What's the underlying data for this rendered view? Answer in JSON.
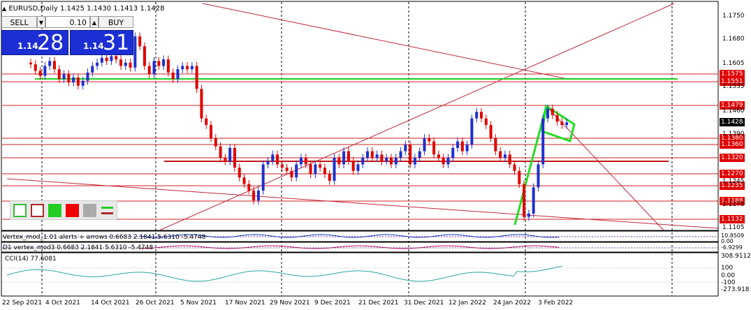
{
  "symbol": {
    "title": "EURUSD,Daily  1.1425 1.1430 1.1413 1.1428",
    "arrow_icon": "triangle-up-icon"
  },
  "trade_panel": {
    "sell_label": "SELL",
    "buy_label": "BUY",
    "lot_value": "0.10",
    "sell_price_small": "1.14",
    "sell_price_big": "28",
    "buy_price_small": "1.14",
    "buy_price_big": "31",
    "accent_color": "#1c2fd4"
  },
  "price_levels": [
    {
      "label": "1.1575",
      "color": "#e00000"
    },
    {
      "label": "1.1551",
      "color": "#e00000"
    },
    {
      "label": "1.1479",
      "color": "#e00000"
    },
    {
      "label": "1.1428",
      "color": "#000000"
    },
    {
      "label": "1.1380",
      "color": "#e00000"
    },
    {
      "label": "1.1360",
      "color": "#e00000"
    },
    {
      "label": "1.1320",
      "color": "#e00000"
    },
    {
      "label": "1.1270",
      "color": "#e00000"
    },
    {
      "label": "1.1235",
      "color": "#e00000"
    },
    {
      "label": "1.1188",
      "color": "#e00000"
    },
    {
      "label": "1.1132",
      "color": "#e00000"
    }
  ],
  "price_axis": [
    "1.1750",
    "1.1680",
    "1.1605",
    "1.1535",
    "1.1460",
    "1.1390",
    "1.1245",
    "1.1175",
    "1.1105"
  ],
  "indicators": {
    "vertex1": "Vertex_mod_1.01 alerts + arrows 0.6683 2.1841 5.6310 -5.4748",
    "vertex2": "D1 vertex_mod3 0.6683 2.1841 5.6310 -5.4748",
    "cci": "CCI(14) 77.6081",
    "cci_axis": [
      "308.9112",
      "100",
      "0.00",
      "-100",
      "-273.918"
    ],
    "vertex_axis": [
      "10.8509",
      "0.00",
      "-6.9299"
    ]
  },
  "dates": [
    "22 Sep 2021",
    "4 Oct 2021",
    "14 Oct 2021",
    "26 Oct 2021",
    "5 Nov 2021",
    "17 Nov 2021",
    "29 Nov 2021",
    "9 Dec 2021",
    "21 Dec 2021",
    "31 Dec 2021",
    "12 Jan 2022",
    "24 Jan 2022",
    "3 Feb 2022"
  ],
  "legend_icons": [
    "empty-green-box-icon",
    "empty-red-box-icon",
    "filled-green-box-icon",
    "filled-red-box-icon",
    "gray-box-icon",
    "lines-icon"
  ]
}
